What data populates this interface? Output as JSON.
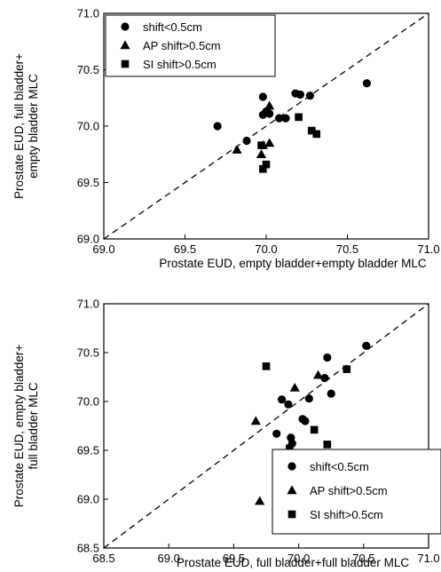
{
  "chart_data": [
    {
      "type": "scatter",
      "xlabel": "Prostate EUD, empty bladder+empty bladder MLC",
      "ylabel": [
        "Prostate EUD, full bladder+",
        "empty bladder MLC"
      ],
      "xlim": [
        69.0,
        71.0
      ],
      "ylim": [
        69.0,
        71.0
      ],
      "xticks": [
        "69.0",
        "69.5",
        "70.0",
        "70.5",
        "71.0"
      ],
      "yticks": [
        "69.0",
        "69.5",
        "70.0",
        "70.5",
        "71.0"
      ],
      "identity_line": true,
      "legend_position": "top-left",
      "series": [
        {
          "name": "shift<0.5cm",
          "marker": "circle",
          "points": [
            [
              69.7,
              70.0
            ],
            [
              69.88,
              69.87
            ],
            [
              69.98,
              70.26
            ],
            [
              69.98,
              70.1
            ],
            [
              70.0,
              70.13
            ],
            [
              70.02,
              70.11
            ],
            [
              70.08,
              70.07
            ],
            [
              70.12,
              70.07
            ],
            [
              70.18,
              70.29
            ],
            [
              70.21,
              70.28
            ],
            [
              70.27,
              70.27
            ],
            [
              70.62,
              70.38
            ]
          ]
        },
        {
          "name": "AP shift>0.5cm",
          "marker": "triangle",
          "points": [
            [
              69.82,
              69.79
            ],
            [
              69.97,
              69.75
            ],
            [
              69.98,
              69.83
            ],
            [
              70.02,
              70.18
            ],
            [
              70.02,
              69.85
            ]
          ]
        },
        {
          "name": "SI shift>0.5cm",
          "marker": "square",
          "points": [
            [
              69.97,
              69.83
            ],
            [
              69.98,
              69.62
            ],
            [
              70.0,
              69.66
            ],
            [
              70.2,
              70.08
            ],
            [
              70.28,
              69.96
            ],
            [
              70.31,
              69.93
            ]
          ]
        }
      ]
    },
    {
      "type": "scatter",
      "xlabel": "Prostate EUD, full bladder+full bladder MLC",
      "ylabel": [
        "Prostate EUD, empty bladder+",
        "full bladder MLC"
      ],
      "xlim": [
        68.5,
        71.0
      ],
      "ylim": [
        68.5,
        71.0
      ],
      "xticks": [
        "68.5",
        "69.0",
        "69.5",
        "70.0",
        "70.5",
        "71.0"
      ],
      "yticks": [
        "68.5",
        "69.0",
        "69.5",
        "70.0",
        "70.5",
        "71.0"
      ],
      "identity_line": true,
      "legend_position": "bottom-right",
      "series": [
        {
          "name": "shift<0.5cm",
          "marker": "circle",
          "points": [
            [
              69.83,
              69.67
            ],
            [
              69.87,
              70.02
            ],
            [
              69.92,
              69.97
            ],
            [
              69.94,
              69.63
            ],
            [
              69.95,
              69.57
            ],
            [
              70.03,
              69.82
            ],
            [
              70.05,
              69.8
            ],
            [
              70.08,
              70.03
            ],
            [
              70.2,
              70.24
            ],
            [
              70.22,
              70.45
            ],
            [
              70.25,
              70.08
            ],
            [
              70.52,
              70.57
            ]
          ]
        },
        {
          "name": "AP shift>0.5cm",
          "marker": "triangle",
          "points": [
            [
              69.67,
              69.8
            ],
            [
              69.7,
              68.98
            ],
            [
              69.97,
              70.14
            ],
            [
              70.15,
              70.27
            ]
          ]
        },
        {
          "name": "SI shift>0.5cm",
          "marker": "square",
          "points": [
            [
              69.75,
              70.36
            ],
            [
              69.93,
              69.47
            ],
            [
              69.93,
              69.52
            ],
            [
              70.12,
              69.71
            ],
            [
              70.22,
              69.56
            ],
            [
              70.37,
              70.33
            ]
          ]
        }
      ]
    }
  ]
}
